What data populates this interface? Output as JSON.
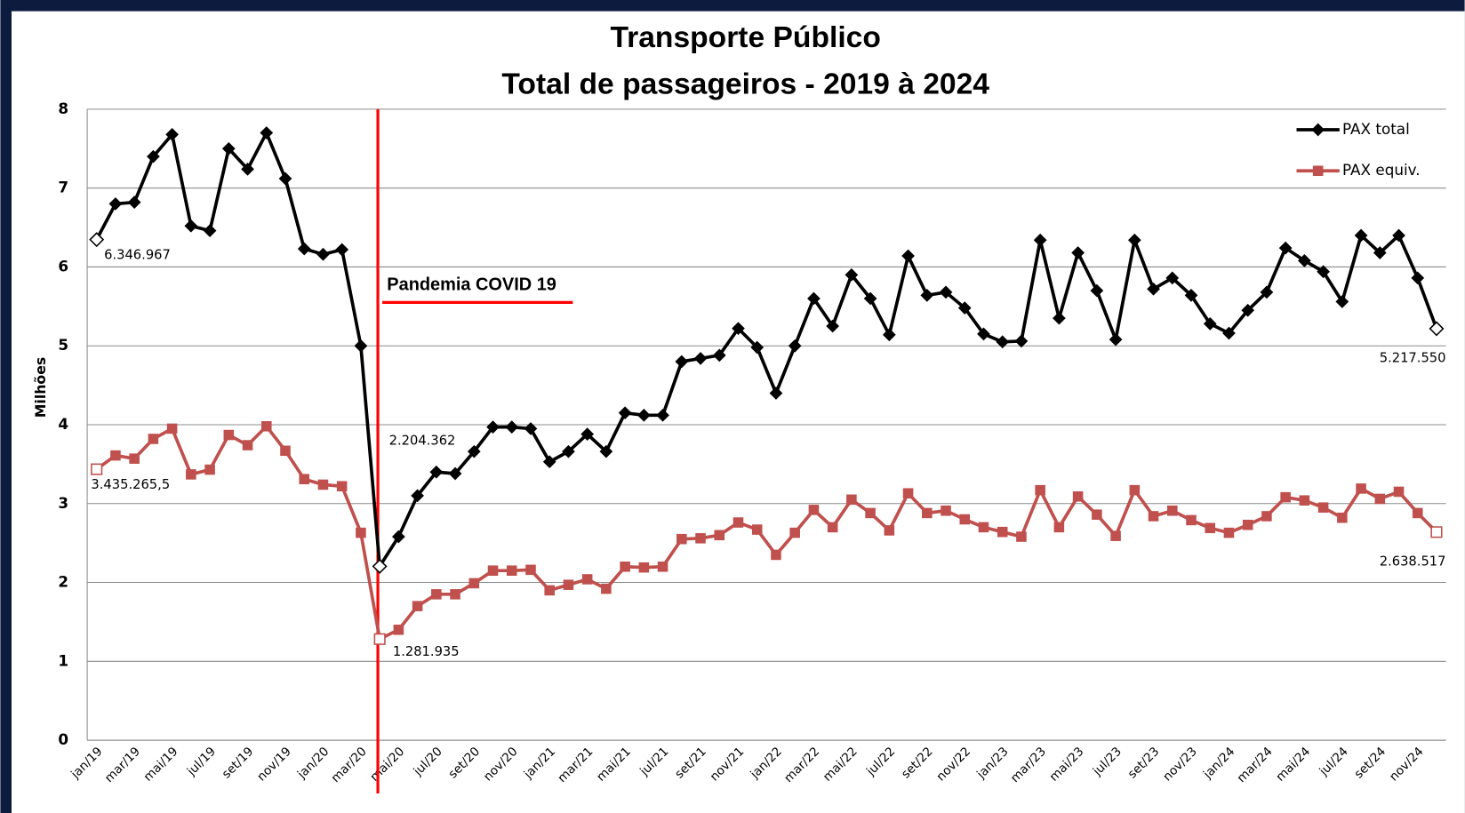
{
  "chart_data": {
    "type": "line",
    "title": "Transporte Público",
    "subtitle": "Total de passageiros - 2019 à 2024",
    "y_label": "Milhões",
    "annotation": "Pandemia COVID 19",
    "categories": [
      "jan/19",
      null,
      "mar/19",
      null,
      "mai/19",
      null,
      "jul/19",
      null,
      "set/19",
      null,
      "nov/19",
      null,
      "jan/20",
      null,
      "mar/20",
      null,
      "mai/20",
      null,
      "jul/20",
      null,
      "set/20",
      null,
      "nov/20",
      null,
      "jan/21",
      null,
      "mar/21",
      null,
      "mai/21",
      null,
      "jul/21",
      null,
      "set/21",
      null,
      "nov/21",
      null,
      "jan/22",
      null,
      "mar/22",
      null,
      "mai/22",
      null,
      "jul/22",
      null,
      "set/22",
      null,
      "nov/22",
      null,
      "jan/23",
      null,
      "mar/23",
      null,
      "mai/23",
      null,
      "jul/23",
      null,
      "set/23",
      null,
      "nov/23",
      null,
      "jan/24",
      null,
      "mar/24",
      null,
      "mai/24",
      null,
      "jul/24",
      null,
      "set/24",
      null,
      "nov/24",
      null
    ],
    "series": [
      {
        "name": "PAX total",
        "color": "#000000",
        "marker": "diamond",
        "values": [
          6.346967,
          6.8,
          6.82,
          7.4,
          7.68,
          6.52,
          6.46,
          7.5,
          7.24,
          7.7,
          7.12,
          6.23,
          6.16,
          6.22,
          5.0,
          2.204362,
          2.58,
          3.1,
          3.4,
          3.38,
          3.66,
          3.97,
          3.97,
          3.95,
          3.53,
          3.66,
          3.88,
          3.66,
          4.15,
          4.12,
          4.12,
          4.8,
          4.84,
          4.88,
          5.22,
          4.98,
          4.4,
          5.0,
          5.6,
          5.25,
          5.9,
          5.6,
          5.14,
          6.14,
          5.64,
          5.68,
          5.48,
          5.15,
          5.05,
          5.06,
          6.34,
          5.35,
          6.18,
          5.7,
          5.08,
          6.34,
          5.72,
          5.86,
          5.64,
          5.28,
          5.16,
          5.45,
          5.68,
          6.24,
          6.08,
          5.94,
          5.56,
          6.4,
          6.18,
          6.4,
          5.86,
          5.21755
        ],
        "value_labels": [
          "6.346.967",
          null,
          null,
          null,
          null,
          null,
          null,
          null,
          null,
          null,
          null,
          null,
          null,
          null,
          null,
          "2.204.362",
          null,
          null,
          null,
          null,
          null,
          null,
          null,
          null,
          null,
          null,
          null,
          null,
          null,
          null,
          null,
          null,
          null,
          null,
          null,
          null,
          null,
          null,
          null,
          null,
          null,
          null,
          null,
          null,
          null,
          null,
          null,
          null,
          null,
          null,
          null,
          null,
          null,
          null,
          null,
          null,
          null,
          null,
          null,
          null,
          null,
          null,
          null,
          null,
          null,
          null,
          null,
          null,
          null,
          null,
          null,
          "5.217.550"
        ]
      },
      {
        "name": "PAX equiv.",
        "color": "#c0504d",
        "marker": "square",
        "values": [
          3.4352655,
          3.61,
          3.57,
          3.82,
          3.95,
          3.37,
          3.43,
          3.87,
          3.74,
          3.98,
          3.67,
          3.31,
          3.24,
          3.22,
          2.63,
          1.281935,
          1.4,
          1.7,
          1.85,
          1.85,
          1.99,
          2.15,
          2.15,
          2.16,
          1.9,
          1.97,
          2.04,
          1.92,
          2.2,
          2.19,
          2.2,
          2.55,
          2.56,
          2.6,
          2.76,
          2.67,
          2.35,
          2.63,
          2.92,
          2.7,
          3.05,
          2.88,
          2.66,
          3.13,
          2.88,
          2.91,
          2.8,
          2.7,
          2.64,
          2.58,
          3.17,
          2.7,
          3.09,
          2.86,
          2.59,
          3.17,
          2.84,
          2.91,
          2.79,
          2.69,
          2.63,
          2.73,
          2.84,
          3.08,
          3.04,
          2.95,
          2.82,
          3.19,
          3.06,
          3.15,
          2.88,
          2.638517
        ],
        "value_labels": [
          "3.435.265,5",
          null,
          null,
          null,
          null,
          null,
          null,
          null,
          null,
          null,
          null,
          null,
          null,
          null,
          null,
          "1.281.935",
          null,
          null,
          null,
          null,
          null,
          null,
          null,
          null,
          null,
          null,
          null,
          null,
          null,
          null,
          null,
          null,
          null,
          null,
          null,
          null,
          null,
          null,
          null,
          null,
          null,
          null,
          null,
          null,
          null,
          null,
          null,
          null,
          null,
          null,
          null,
          null,
          null,
          null,
          null,
          null,
          null,
          null,
          null,
          null,
          null,
          null,
          null,
          null,
          null,
          null,
          null,
          null,
          null,
          null,
          null,
          "2.638.517"
        ]
      }
    ],
    "ylim": [
      0,
      8
    ],
    "yticks": [
      0,
      1,
      2,
      3,
      4,
      5,
      6,
      7,
      8
    ],
    "grid": true,
    "legend": "top-right"
  }
}
